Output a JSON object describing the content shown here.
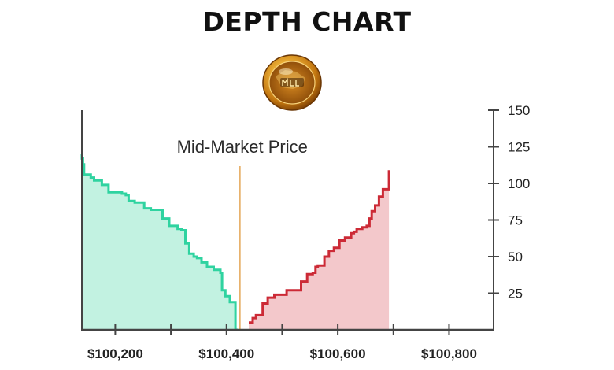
{
  "chart_data": {
    "type": "area",
    "title": "DEPTH CHART",
    "xlim": [
      100140,
      100880
    ],
    "ylim": [
      0,
      150
    ],
    "x_ticks": [
      100200,
      100400,
      100600,
      100800
    ],
    "x_tick_labels": [
      "$100,200",
      "$100,400",
      "$100,600",
      "$100,800"
    ],
    "y_ticks": [
      25,
      50,
      75,
      100,
      125,
      150
    ],
    "y_tick_labels": [
      "25",
      "50",
      "75",
      "100",
      "125",
      "150"
    ],
    "annotation": {
      "text": "Mid-Market Price",
      "x": 100424
    },
    "colors": {
      "bids_line": "#2fd3a0",
      "bids_fill": "#c2f2e1",
      "asks_line": "#cc2a36",
      "asks_fill": "#f3c8cb",
      "mid_line": "#e8b26d",
      "axis": "#444444"
    },
    "series": [
      {
        "side": "bids",
        "step": "pre",
        "x": [
          100140,
          100142,
          100144,
          100146,
          100156,
          100162,
          100168,
          100176,
          100188,
          100198,
          100212,
          100219,
          100224,
          100235,
          100242,
          100252,
          100264,
          100273,
          100285,
          100297,
          100304,
          100312,
          100319,
          100326,
          100333,
          100341,
          100347,
          100355,
          100365,
          100377,
          100389,
          100392,
          100398,
          100406,
          100416,
          100420
        ],
        "y": [
          120,
          117,
          113,
          106,
          106,
          104,
          102,
          102,
          99,
          94,
          94,
          93,
          92,
          88,
          87,
          87,
          83,
          82,
          82,
          76,
          71,
          71,
          69,
          68,
          59,
          52,
          50,
          49,
          46,
          43,
          41,
          39,
          27,
          23,
          19,
          0
        ]
      },
      {
        "side": "asks",
        "step": "post",
        "x": [
          100440,
          100441,
          100447,
          100453,
          100465,
          100474,
          100486,
          100508,
          100534,
          100545,
          100555,
          100560,
          100564,
          100576,
          100584,
          100593,
          100603,
          100613,
          100624,
          100629,
          100634,
          100644,
          100652,
          100657,
          100661,
          100667,
          100674,
          100681,
          100692
        ],
        "y": [
          5,
          5,
          8,
          10,
          18,
          22,
          24,
          27,
          33,
          38,
          39,
          43,
          44,
          50,
          54,
          56,
          61,
          63,
          66,
          67,
          69,
          70,
          71,
          76,
          81,
          85,
          91,
          96,
          109
        ]
      }
    ]
  },
  "logo": {
    "name": "coin-logo"
  }
}
